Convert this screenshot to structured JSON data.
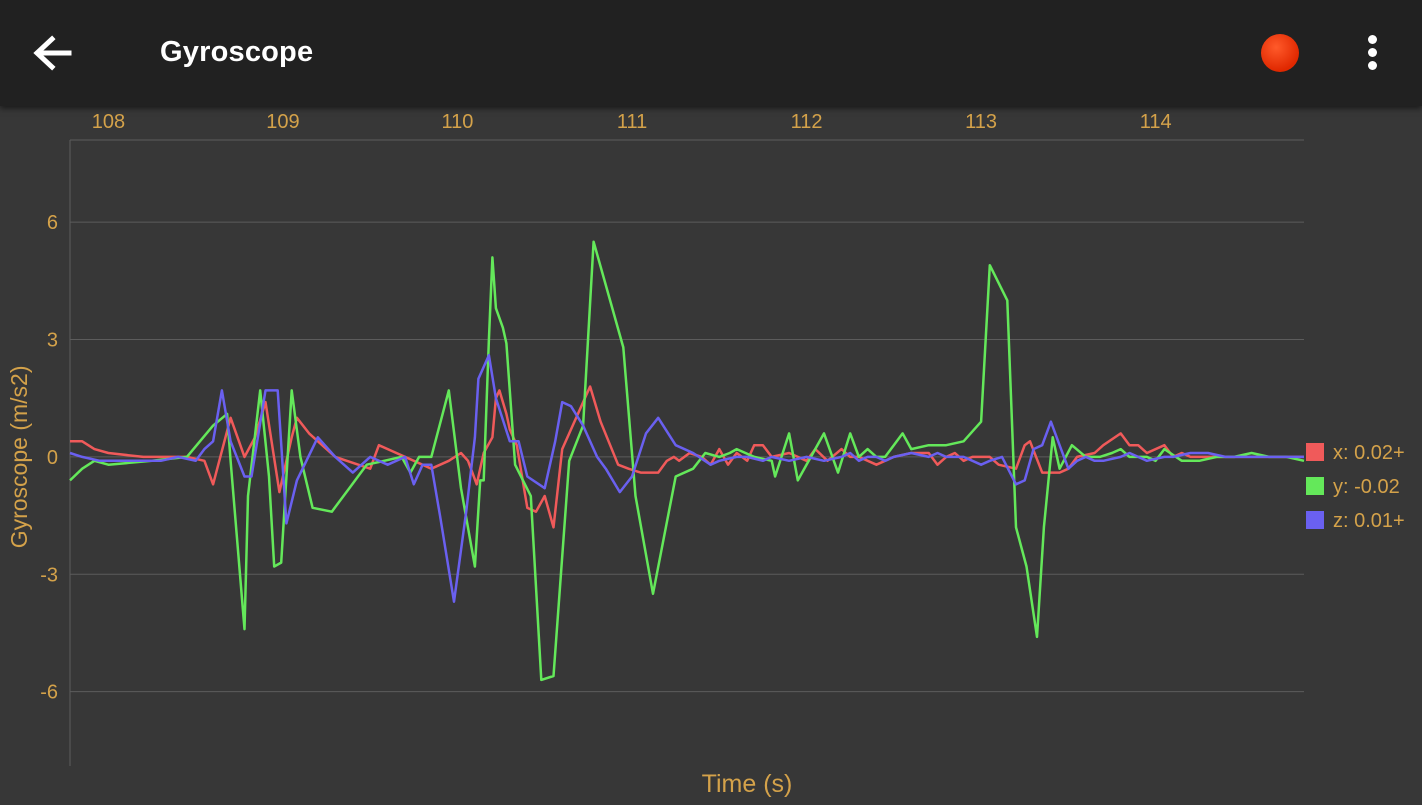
{
  "appbar": {
    "title": "Gyroscope",
    "back_icon": "arrow-left-icon",
    "record_icon": "record-dot-icon",
    "menu_icon": "more-vert-icon",
    "record_color": "#e02800"
  },
  "colors": {
    "background": "#373737",
    "appbar": "#212121",
    "axis_text": "#d4a24a",
    "grid": "#5c5c5c"
  },
  "chart_data": {
    "type": "line",
    "xlabel": "Time (s)",
    "ylabel": "Gyroscope (m/s2)",
    "xlim": [
      107.78,
      114.85
    ],
    "ylim": [
      -7.9,
      8.1
    ],
    "x_ticks": [
      108,
      109,
      110,
      111,
      112,
      113,
      114
    ],
    "y_ticks": [
      6,
      3,
      0,
      -3,
      -6
    ],
    "grid": true,
    "x_axis_position": "top",
    "legend_position": "right",
    "series": [
      {
        "name": "x",
        "legend": "x: 0.02+",
        "color": "#f05a5a",
        "x": [
          107.78,
          107.85,
          107.92,
          108.0,
          108.2,
          108.45,
          108.55,
          108.6,
          108.7,
          108.78,
          108.84,
          108.9,
          108.98,
          109.05,
          109.08,
          109.15,
          109.3,
          109.5,
          109.55,
          109.65,
          109.7,
          109.85,
          109.95,
          110.02,
          110.06,
          110.11,
          110.15,
          110.2,
          110.22,
          110.24,
          110.28,
          110.3,
          110.34,
          110.4,
          110.45,
          110.5,
          110.55,
          110.6,
          110.68,
          110.76,
          110.82,
          110.92,
          110.98,
          111.05,
          111.15,
          111.2,
          111.24,
          111.27,
          111.33,
          111.4,
          111.45,
          111.5,
          111.55,
          111.6,
          111.66,
          111.7,
          111.75,
          111.8,
          111.9,
          112.0,
          112.05,
          112.12,
          112.2,
          112.25,
          112.3,
          112.4,
          112.5,
          112.6,
          112.7,
          112.75,
          112.8,
          112.85,
          112.9,
          112.95,
          113.05,
          113.1,
          113.2,
          113.25,
          113.28,
          113.35,
          113.4,
          113.45,
          113.5,
          113.55,
          113.65,
          113.7,
          113.8,
          113.85,
          113.9,
          113.95,
          114.05,
          114.1,
          114.15,
          114.2,
          114.3,
          114.35,
          114.45,
          114.5,
          114.55,
          114.6,
          114.7,
          114.75,
          114.85
        ],
        "y": [
          0.4,
          0.4,
          0.2,
          0.1,
          0.0,
          0.0,
          -0.1,
          -0.7,
          1.0,
          0.0,
          0.5,
          1.4,
          -0.9,
          0.5,
          1.0,
          0.6,
          0.0,
          -0.3,
          0.3,
          0.1,
          0.0,
          -0.3,
          -0.1,
          0.1,
          -0.1,
          -0.7,
          0.1,
          0.5,
          1.5,
          1.7,
          1.1,
          0.7,
          0.3,
          -1.3,
          -1.4,
          -1.0,
          -1.8,
          0.2,
          1.0,
          1.8,
          0.9,
          -0.2,
          -0.3,
          -0.4,
          -0.4,
          -0.1,
          0.0,
          -0.1,
          0.1,
          0.0,
          -0.2,
          0.2,
          -0.2,
          0.1,
          -0.1,
          0.3,
          0.3,
          0.0,
          0.1,
          -0.1,
          0.2,
          -0.1,
          0.2,
          0.0,
          0.0,
          -0.2,
          0.0,
          0.1,
          0.1,
          -0.2,
          0.0,
          0.1,
          -0.1,
          0.0,
          0.0,
          -0.2,
          -0.3,
          0.3,
          0.4,
          -0.4,
          -0.4,
          -0.4,
          -0.3,
          0.0,
          0.1,
          0.3,
          0.6,
          0.3,
          0.3,
          0.1,
          0.3,
          0.0,
          0.1,
          0.0,
          0.0,
          0.0,
          0.0,
          0.0,
          0.0,
          0.0,
          0.0,
          0.0,
          0.0
        ]
      },
      {
        "name": "y",
        "legend": "y: -0.02",
        "color": "#64e85a",
        "x": [
          107.78,
          107.85,
          107.92,
          108.0,
          108.25,
          108.45,
          108.6,
          108.68,
          108.7,
          108.78,
          108.8,
          108.87,
          108.92,
          108.95,
          108.99,
          109.05,
          109.1,
          109.17,
          109.28,
          109.38,
          109.48,
          109.58,
          109.68,
          109.73,
          109.78,
          109.85,
          109.95,
          110.02,
          110.1,
          110.13,
          110.15,
          110.18,
          110.2,
          110.22,
          110.26,
          110.28,
          110.33,
          110.42,
          110.48,
          110.55,
          110.64,
          110.72,
          110.78,
          110.95,
          111.02,
          111.12,
          111.25,
          111.35,
          111.42,
          111.5,
          111.56,
          111.6,
          111.7,
          111.8,
          111.82,
          111.9,
          111.95,
          112.1,
          112.18,
          112.25,
          112.3,
          112.35,
          112.4,
          112.45,
          112.5,
          112.55,
          112.6,
          112.7,
          112.8,
          112.9,
          113.0,
          113.05,
          113.15,
          113.2,
          113.26,
          113.32,
          113.36,
          113.41,
          113.45,
          113.52,
          113.6,
          113.68,
          113.75,
          113.8,
          113.85,
          113.9,
          113.95,
          114.0,
          114.05,
          114.15,
          114.25,
          114.35,
          114.45,
          114.55,
          114.65,
          114.75,
          114.85
        ],
        "y": [
          -0.6,
          -0.3,
          -0.1,
          -0.2,
          -0.1,
          0.0,
          0.8,
          1.1,
          -0.1,
          -4.4,
          -1.0,
          1.7,
          -0.5,
          -2.8,
          -2.7,
          1.7,
          0.0,
          -1.3,
          -1.4,
          -0.8,
          -0.2,
          -0.1,
          0.0,
          -0.4,
          0.0,
          0.0,
          1.7,
          -0.8,
          -2.8,
          -0.6,
          -0.6,
          3.0,
          5.1,
          3.8,
          3.3,
          2.9,
          -0.2,
          -1.0,
          -5.7,
          -5.6,
          -0.1,
          0.8,
          5.5,
          2.8,
          -1.0,
          -3.5,
          -0.5,
          -0.3,
          0.1,
          0.0,
          0.1,
          0.2,
          0.0,
          -0.1,
          -0.5,
          0.6,
          -0.6,
          0.6,
          -0.4,
          0.6,
          0.0,
          0.2,
          0.0,
          0.0,
          0.3,
          0.6,
          0.2,
          0.3,
          0.3,
          0.4,
          0.9,
          4.9,
          4.0,
          -1.8,
          -2.8,
          -4.6,
          -1.8,
          0.5,
          -0.3,
          0.3,
          0.0,
          0.0,
          0.1,
          0.2,
          0.0,
          0.0,
          0.0,
          -0.1,
          0.2,
          -0.1,
          -0.1,
          0.0,
          0.0,
          0.1,
          0.0,
          0.0,
          -0.1
        ]
      },
      {
        "name": "z",
        "legend": "z: 0.01+",
        "color": "#6a60f0",
        "x": [
          107.78,
          107.85,
          107.95,
          108.1,
          108.3,
          108.4,
          108.5,
          108.55,
          108.6,
          108.65,
          108.7,
          108.78,
          108.82,
          108.9,
          108.97,
          109.02,
          109.08,
          109.2,
          109.3,
          109.4,
          109.5,
          109.6,
          109.7,
          109.75,
          109.8,
          109.85,
          109.9,
          109.98,
          110.05,
          110.1,
          110.12,
          110.18,
          110.22,
          110.3,
          110.35,
          110.4,
          110.5,
          110.56,
          110.6,
          110.65,
          110.72,
          110.8,
          110.85,
          110.93,
          111.0,
          111.08,
          111.15,
          111.25,
          111.35,
          111.45,
          111.5,
          111.6,
          111.66,
          111.75,
          111.8,
          111.9,
          112.0,
          112.1,
          112.2,
          112.25,
          112.3,
          112.35,
          112.4,
          112.45,
          112.5,
          112.6,
          112.7,
          112.75,
          112.8,
          112.9,
          113.0,
          113.05,
          113.12,
          113.2,
          113.25,
          113.3,
          113.35,
          113.4,
          113.45,
          113.5,
          113.55,
          113.6,
          113.65,
          113.7,
          113.8,
          113.85,
          113.9,
          113.95,
          114.05,
          114.1,
          114.2,
          114.3,
          114.4,
          114.5,
          114.6,
          114.7,
          114.75,
          114.85
        ],
        "y": [
          0.1,
          0.0,
          -0.1,
          -0.1,
          -0.1,
          0.0,
          -0.1,
          0.2,
          0.4,
          1.7,
          0.4,
          -0.5,
          -0.5,
          1.7,
          1.7,
          -1.7,
          -0.6,
          0.5,
          0.0,
          -0.4,
          0.0,
          -0.2,
          0.0,
          -0.7,
          -0.2,
          -0.2,
          -1.5,
          -3.7,
          -1.4,
          0.5,
          2.0,
          2.6,
          1.5,
          0.4,
          0.4,
          -0.5,
          -0.8,
          0.4,
          1.4,
          1.3,
          0.8,
          0.0,
          -0.3,
          -0.9,
          -0.5,
          0.6,
          1.0,
          0.3,
          0.1,
          -0.2,
          -0.1,
          0.0,
          0.0,
          -0.1,
          0.0,
          -0.1,
          0.0,
          -0.1,
          0.0,
          0.1,
          -0.1,
          0.0,
          0.0,
          -0.1,
          0.0,
          0.1,
          0.0,
          0.1,
          0.0,
          0.0,
          -0.2,
          -0.1,
          0.0,
          -0.7,
          -0.6,
          0.2,
          0.3,
          0.9,
          0.3,
          -0.3,
          -0.1,
          0.0,
          -0.1,
          -0.1,
          0.0,
          0.1,
          0.0,
          -0.1,
          0.0,
          0.0,
          0.1,
          0.1,
          0.0,
          0.0,
          0.0,
          0.0,
          0.0,
          0.0
        ]
      }
    ]
  }
}
